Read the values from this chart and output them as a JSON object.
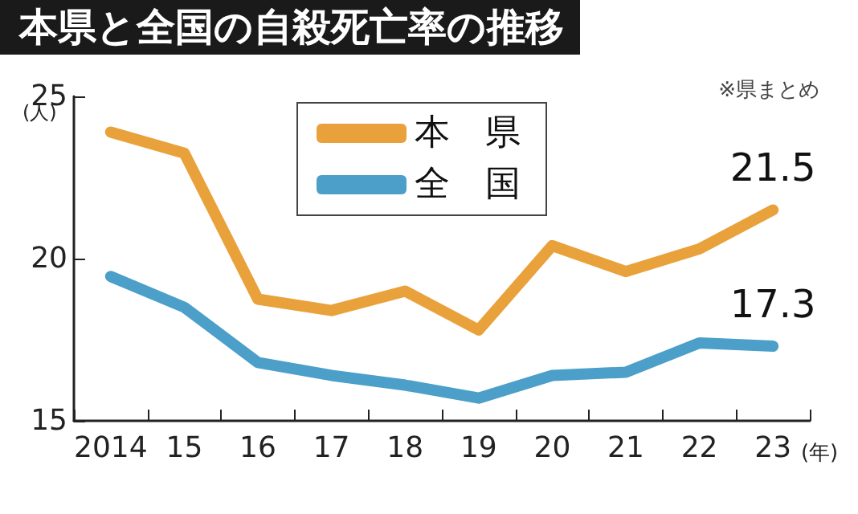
{
  "chart_data": {
    "type": "line",
    "title": "本県と全国の自殺死亡率の推移",
    "xlabel": "(年)",
    "ylabel": "(人)",
    "annotations": [
      "※県まとめ"
    ],
    "categories": [
      "2014",
      "15",
      "16",
      "17",
      "18",
      "19",
      "20",
      "21",
      "22",
      "23"
    ],
    "series": [
      {
        "name": "本　県",
        "color": "#e9a23b",
        "values": [
          23.9,
          23.25,
          18.75,
          18.4,
          19.0,
          17.8,
          20.4,
          19.6,
          20.3,
          21.5
        ],
        "value_labels": [
          null,
          null,
          null,
          null,
          null,
          null,
          null,
          null,
          null,
          "21.5"
        ]
      },
      {
        "name": "全　国",
        "color": "#4b9fc8",
        "values": [
          19.45,
          18.5,
          16.8,
          16.4,
          16.1,
          15.7,
          16.4,
          16.5,
          17.4,
          17.3
        ],
        "value_labels": [
          null,
          null,
          null,
          null,
          null,
          null,
          null,
          null,
          null,
          "17.3"
        ]
      }
    ],
    "ylim": [
      15,
      25
    ],
    "yticks": [
      15,
      20,
      25
    ],
    "grid": false,
    "legend": "top",
    "marker": "none",
    "line_style": "solid"
  }
}
